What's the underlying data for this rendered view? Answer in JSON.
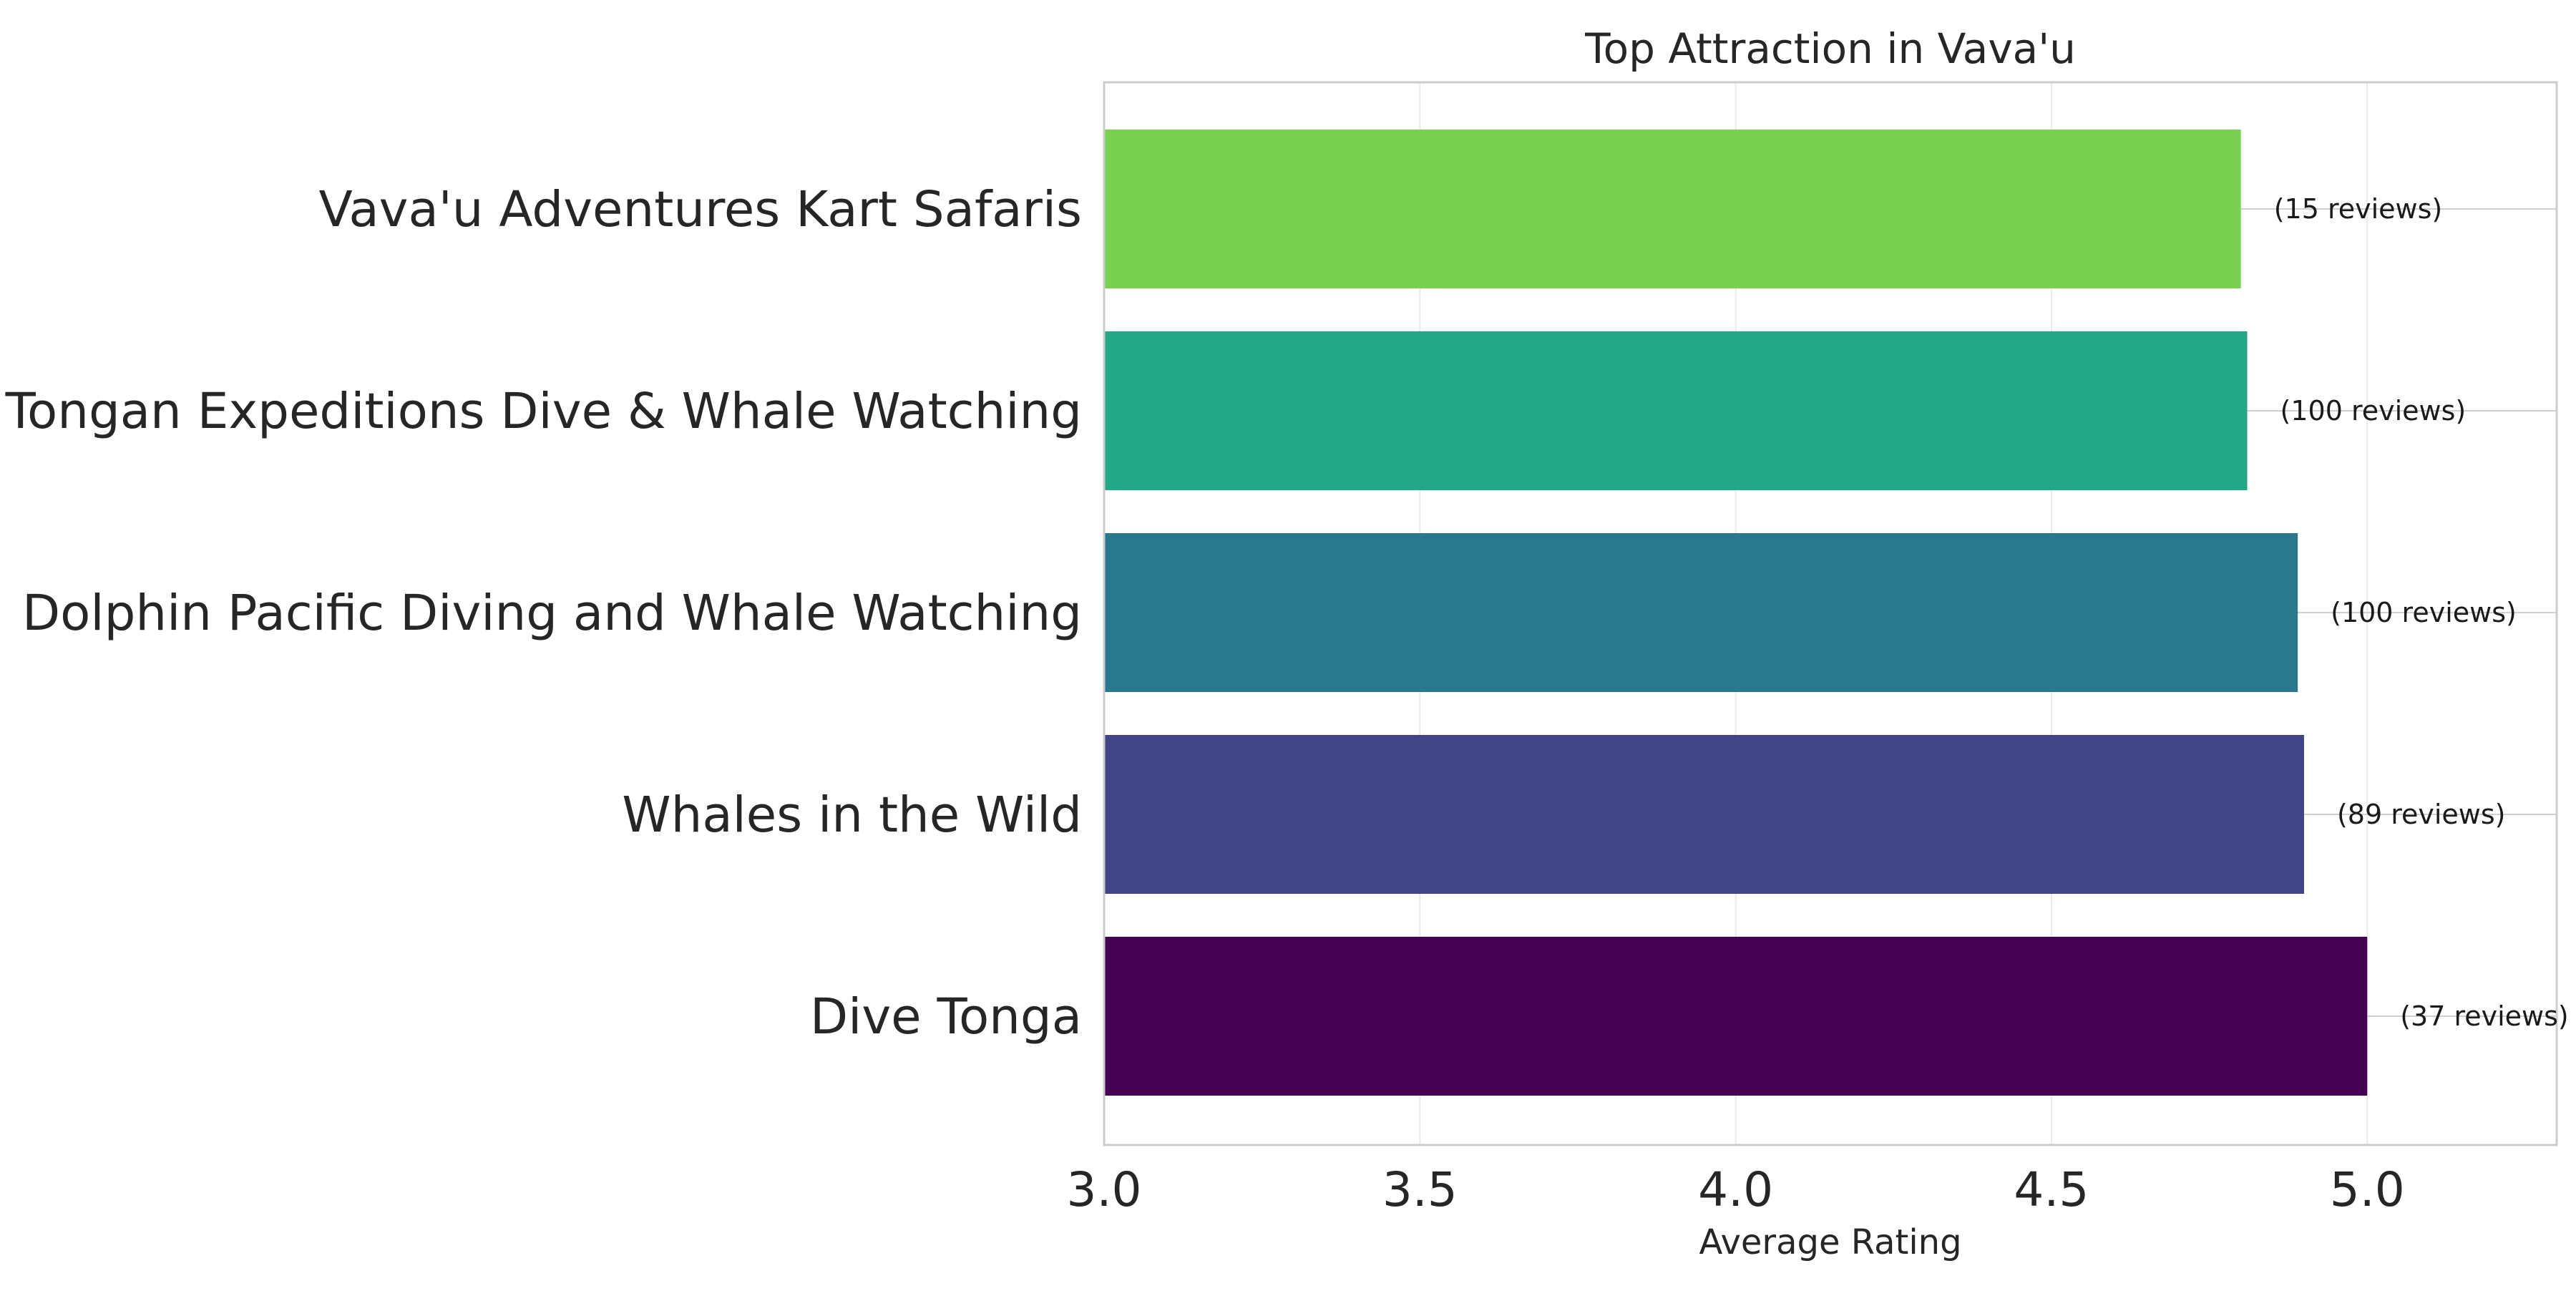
{
  "chart_data": {
    "type": "bar",
    "orientation": "horizontal",
    "title": "Top Attraction in Vava'u",
    "xlabel": "Average Rating",
    "ylabel": "",
    "xlim": [
      3.0,
      5.3
    ],
    "xticks": [
      3.0,
      3.5,
      4.0,
      4.5,
      5.0
    ],
    "xtick_labels": [
      "3.0",
      "3.5",
      "4.0",
      "4.5",
      "5.0"
    ],
    "grid": true,
    "categories": [
      "Dive Tonga",
      "Whales in the Wild",
      "Dolphin Pacific Diving and Whale Watching",
      "Tongan Expeditions Dive & Whale Watching",
      "Vava'u Adventures Kart Safaris"
    ],
    "values": [
      5.0,
      4.9,
      4.89,
      4.81,
      4.8
    ],
    "data_labels": [
      "(37 reviews)",
      "(89 reviews)",
      "(100 reviews)",
      "(100 reviews)",
      "(15 reviews)"
    ],
    "colors": [
      "#440154",
      "#414487",
      "#2a788e",
      "#22a884",
      "#7ad151"
    ]
  }
}
